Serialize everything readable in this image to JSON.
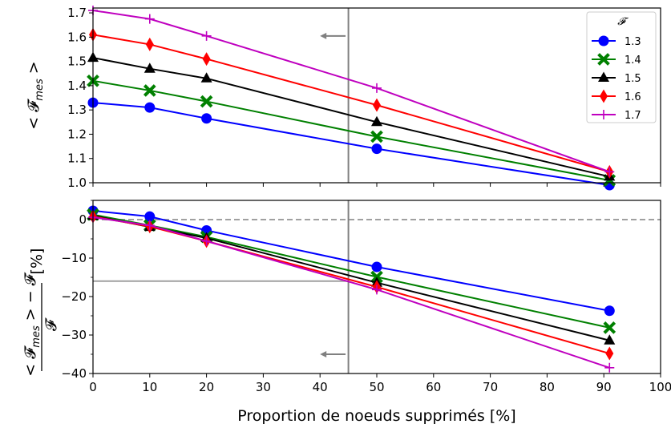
{
  "chart_data": [
    {
      "type": "line",
      "ylabel": "< 𝓕",
      "ylabel_sub": "mes",
      "ylabel_end": " >",
      "xlim": [
        0,
        100
      ],
      "ylim": [
        1.0,
        1.72
      ],
      "yticks": [
        "1.0",
        "1.1",
        "1.2",
        "1.3",
        "1.4",
        "1.5",
        "1.6",
        "1.7"
      ],
      "ytick_values": [
        1.0,
        1.1,
        1.2,
        1.3,
        1.4,
        1.5,
        1.6,
        1.7
      ],
      "vline_x": 45,
      "arrow": {
        "x_from": 44.5,
        "x_to": 40,
        "y": 1.605
      },
      "legend": {
        "title": "𝓕",
        "placement": "top-right"
      },
      "series": [
        {
          "name": "1.3",
          "color": "#0000ff",
          "marker": "circle",
          "x": [
            0,
            10,
            20,
            50,
            91
          ],
          "y": [
            1.33,
            1.31,
            1.265,
            1.14,
            0.99
          ]
        },
        {
          "name": "1.4",
          "color": "#008000",
          "marker": "x-filled",
          "x": [
            0,
            10,
            20,
            50,
            91
          ],
          "y": [
            1.42,
            1.38,
            1.335,
            1.19,
            1.01
          ]
        },
        {
          "name": "1.5",
          "color": "#000000",
          "marker": "triangle",
          "x": [
            0,
            10,
            20,
            50,
            91
          ],
          "y": [
            1.515,
            1.47,
            1.43,
            1.25,
            1.025
          ]
        },
        {
          "name": "1.6",
          "color": "#ff0000",
          "marker": "diamond",
          "x": [
            0,
            10,
            20,
            50,
            91
          ],
          "y": [
            1.61,
            1.57,
            1.51,
            1.32,
            1.045
          ]
        },
        {
          "name": "1.7",
          "color": "#bf00bf",
          "marker": "plus",
          "x": [
            0,
            10,
            20,
            50,
            91
          ],
          "y": [
            1.71,
            1.675,
            1.605,
            1.39,
            1.045
          ]
        }
      ]
    },
    {
      "type": "line",
      "xlabel": "Proportion de noeuds supprimés [%]",
      "ylabel_num": "< 𝓕",
      "ylabel_num_sub": "mes",
      "ylabel_num_end": " > − 𝓕",
      "ylabel_den": "𝓕",
      "ylabel_unit": "[%]",
      "xlim": [
        0,
        100
      ],
      "ylim": [
        -40,
        5
      ],
      "xticks": [
        "0",
        "10",
        "20",
        "30",
        "40",
        "50",
        "60",
        "70",
        "80",
        "90",
        "100"
      ],
      "xtick_values": [
        0,
        10,
        20,
        30,
        40,
        50,
        60,
        70,
        80,
        90,
        100
      ],
      "yticks": [
        "0",
        "−10",
        "−20",
        "−30",
        "−40"
      ],
      "ytick_values": [
        0,
        -10,
        -20,
        -30,
        -40
      ],
      "hline_dashed_y": 0,
      "hline_solid_y": -16,
      "vline_x": 45,
      "arrow": {
        "x_from": 44.5,
        "x_to": 40,
        "y": -35
      },
      "series": [
        {
          "name": "1.3",
          "color": "#0000ff",
          "marker": "circle",
          "x": [
            0,
            10,
            20,
            50,
            91
          ],
          "y": [
            2.3,
            0.8,
            -2.8,
            -12.3,
            -23.7
          ]
        },
        {
          "name": "1.4",
          "color": "#008000",
          "marker": "x-filled",
          "x": [
            0,
            10,
            20,
            50,
            91
          ],
          "y": [
            1.3,
            -1.5,
            -4.5,
            -14.9,
            -28.1
          ]
        },
        {
          "name": "1.5",
          "color": "#000000",
          "marker": "triangle",
          "x": [
            0,
            10,
            20,
            50,
            91
          ],
          "y": [
            1.0,
            -1.9,
            -4.8,
            -16.4,
            -31.4
          ]
        },
        {
          "name": "1.6",
          "color": "#ff0000",
          "marker": "diamond",
          "x": [
            0,
            10,
            20,
            50,
            91
          ],
          "y": [
            0.8,
            -1.8,
            -5.6,
            -17.5,
            -34.8
          ]
        },
        {
          "name": "1.7",
          "color": "#bf00bf",
          "marker": "plus",
          "x": [
            0,
            10,
            20,
            50,
            91
          ],
          "y": [
            0.6,
            -1.5,
            -5.6,
            -18.2,
            -38.5
          ]
        }
      ]
    }
  ]
}
